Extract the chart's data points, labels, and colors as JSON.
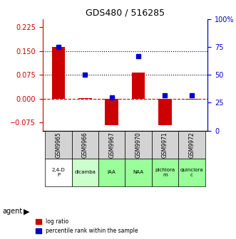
{
  "title": "GDS480 / 516285",
  "categories": [
    "GSM9965",
    "GSM9966",
    "GSM9967",
    "GSM9970",
    "GSM9971",
    "GSM9972"
  ],
  "agents": [
    "2,4-D\nP",
    "dicamba",
    "IAA",
    "NAA",
    "pichlora\nm",
    "quinclora\nc"
  ],
  "agent_colors": [
    "#ffffff",
    "#ccffcc",
    "#99ff99",
    "#99ff99",
    "#99ff99",
    "#99ff99"
  ],
  "log_ratios": [
    0.163,
    0.002,
    -0.083,
    0.082,
    -0.083,
    -0.002
  ],
  "percentile_ranks": [
    75,
    50,
    30,
    67,
    32,
    32
  ],
  "ylim_left": [
    -0.1,
    0.25
  ],
  "ylim_right": [
    0,
    100
  ],
  "yticks_left": [
    -0.075,
    0,
    0.075,
    0.15,
    0.225
  ],
  "yticks_right": [
    0,
    25,
    50,
    75,
    100
  ],
  "hlines": [
    0.075,
    0.15
  ],
  "bar_color": "#cc0000",
  "dot_color": "#0000cc",
  "background_color": "#ffffff",
  "grid_color": "#aaaaaa",
  "left_axis_color": "#cc0000",
  "right_axis_color": "#0000cc"
}
